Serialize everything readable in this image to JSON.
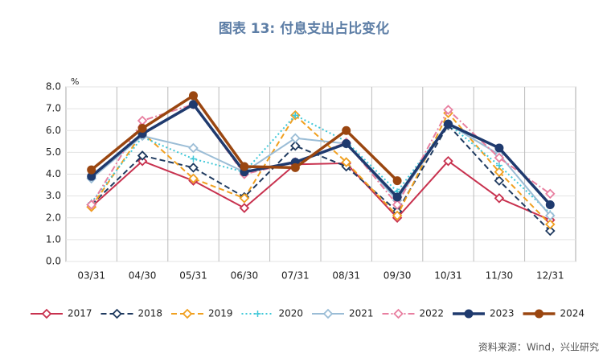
{
  "chart_data": {
    "type": "line",
    "title": "图表 13: 付息支出占比变化",
    "y_unit": "%",
    "source": "资料来源：Wind，兴业研究",
    "categories": [
      "03/31",
      "04/30",
      "05/31",
      "06/30",
      "07/31",
      "08/31",
      "09/30",
      "10/31",
      "11/30",
      "12/31"
    ],
    "ylim": [
      0,
      8
    ],
    "yticks": [
      {
        "value": 0,
        "label": "0.0"
      },
      {
        "value": 1,
        "label": "1.0"
      },
      {
        "value": 2,
        "label": "2.0"
      },
      {
        "value": 3,
        "label": "3.0"
      },
      {
        "value": 4,
        "label": "4.0"
      },
      {
        "value": 5,
        "label": "5.0"
      },
      {
        "value": 6,
        "label": "6.0"
      },
      {
        "value": 7,
        "label": "7.0"
      },
      {
        "value": 8,
        "label": "8.0"
      }
    ],
    "grid": true,
    "legend": "bottom",
    "series": [
      {
        "name": "2017",
        "color": "#c8324f",
        "style": "solid",
        "marker": "diamond",
        "values": [
          2.5,
          4.6,
          3.7,
          2.45,
          4.45,
          4.5,
          2.0,
          4.6,
          2.9,
          1.9
        ]
      },
      {
        "name": "2018",
        "color": "#1f3a5f",
        "style": "dashed",
        "marker": "diamond",
        "values": [
          2.6,
          4.85,
          4.3,
          2.95,
          5.3,
          4.35,
          2.3,
          6.25,
          3.7,
          1.4
        ]
      },
      {
        "name": "2019",
        "color": "#f0a020",
        "style": "dashed",
        "marker": "diamond",
        "values": [
          2.5,
          5.9,
          3.8,
          2.9,
          6.7,
          4.55,
          2.1,
          6.8,
          4.1,
          1.7
        ]
      },
      {
        "name": "2020",
        "color": "#40c8d8",
        "style": "dotted",
        "marker": "cross",
        "values": [
          2.7,
          5.7,
          4.7,
          4.1,
          6.7,
          5.5,
          3.2,
          6.3,
          4.4,
          2.2
        ]
      },
      {
        "name": "2021",
        "color": "#9bbdd6",
        "style": "solid",
        "marker": "diamond",
        "values": [
          3.8,
          5.75,
          5.2,
          4.1,
          5.65,
          5.4,
          2.8,
          6.3,
          4.9,
          2.1
        ]
      },
      {
        "name": "2022",
        "color": "#e87fa0",
        "style": "dashdot",
        "marker": "diamond",
        "values": [
          2.6,
          6.45,
          7.2,
          4.0,
          4.55,
          5.45,
          2.6,
          6.95,
          4.75,
          3.1
        ]
      },
      {
        "name": "2023",
        "color": "#1f3a6e",
        "style": "thick",
        "marker": "circle",
        "values": [
          3.9,
          5.85,
          7.2,
          4.1,
          4.55,
          5.4,
          2.95,
          6.3,
          5.2,
          2.6
        ]
      },
      {
        "name": "2024",
        "color": "#9a4610",
        "style": "thick",
        "marker": "circle",
        "values": [
          4.2,
          6.1,
          7.6,
          4.35,
          4.3,
          6.0,
          3.7,
          null,
          null,
          null
        ]
      }
    ]
  }
}
